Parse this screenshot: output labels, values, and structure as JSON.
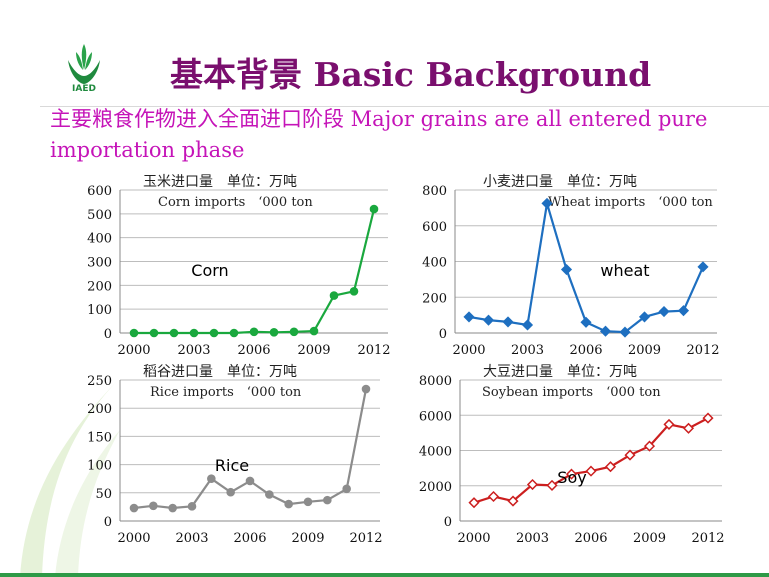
{
  "header": {
    "logo_text": "IAED",
    "title": "基本背景 Basic Background",
    "subtitle": "主要粮食作物进入全面进口阶段  Major grains are all entered pure importation phase"
  },
  "chart_data": [
    {
      "type": "line",
      "title": "玉米进口量　单位：万吨",
      "subtitle": "Corn imports　‘000 ton",
      "label": "Corn",
      "color": "#1aa83e",
      "marker": "circle",
      "x": [
        2000,
        2001,
        2002,
        2003,
        2004,
        2005,
        2006,
        2007,
        2008,
        2009,
        2010,
        2011,
        2012
      ],
      "values": [
        0,
        0,
        0,
        0,
        0,
        0,
        5,
        3,
        5,
        8,
        157,
        175,
        520
      ],
      "ylim": [
        0,
        600
      ],
      "yticks": [
        0,
        100,
        200,
        300,
        400,
        500,
        600
      ],
      "xticks": [
        2000,
        2003,
        2006,
        2009,
        2012
      ],
      "grid": true
    },
    {
      "type": "line",
      "title": "小麦进口量　单位：万吨",
      "subtitle": "Wheat imports　‘000 ton",
      "label": "wheat",
      "color": "#1e6fc0",
      "marker": "diamond",
      "x": [
        2000,
        2001,
        2002,
        2003,
        2004,
        2005,
        2006,
        2007,
        2008,
        2009,
        2010,
        2011,
        2012
      ],
      "values": [
        90,
        72,
        62,
        45,
        725,
        355,
        60,
        10,
        5,
        90,
        120,
        125,
        370
      ],
      "ylim": [
        0,
        800
      ],
      "yticks": [
        0,
        200,
        400,
        600,
        800
      ],
      "xticks": [
        2000,
        2003,
        2006,
        2009,
        2012
      ],
      "grid": true
    },
    {
      "type": "line",
      "title": "稻谷进口量　单位：万吨",
      "subtitle": "Rice imports　‘000 ton",
      "label": "Rice",
      "color": "#8c8c8c",
      "marker": "circle",
      "x": [
        2000,
        2001,
        2002,
        2003,
        2004,
        2005,
        2006,
        2007,
        2008,
        2009,
        2010,
        2011,
        2012
      ],
      "values": [
        23,
        27,
        23,
        26,
        75,
        51,
        71,
        47,
        30,
        34,
        37,
        57,
        234
      ],
      "ylim": [
        0,
        250
      ],
      "yticks": [
        0,
        50,
        100,
        150,
        200,
        250
      ],
      "xticks": [
        2000,
        2003,
        2006,
        2009,
        2012
      ],
      "grid": true
    },
    {
      "type": "line",
      "title": "大豆进口量　单位：万吨",
      "subtitle": "Soybean imports　‘000 ton",
      "label": "Soy",
      "color": "#cc1f1f",
      "marker": "diamond",
      "x": [
        2000,
        2001,
        2002,
        2003,
        2004,
        2005,
        2006,
        2007,
        2008,
        2009,
        2010,
        2011,
        2012
      ],
      "values": [
        1040,
        1390,
        1130,
        2070,
        2020,
        2660,
        2830,
        3080,
        3740,
        4250,
        5480,
        5260,
        5840
      ],
      "ylim": [
        0,
        8000
      ],
      "yticks": [
        0,
        2000,
        4000,
        6000,
        8000
      ],
      "xticks": [
        2000,
        2003,
        2006,
        2009,
        2012
      ],
      "grid": true
    }
  ]
}
